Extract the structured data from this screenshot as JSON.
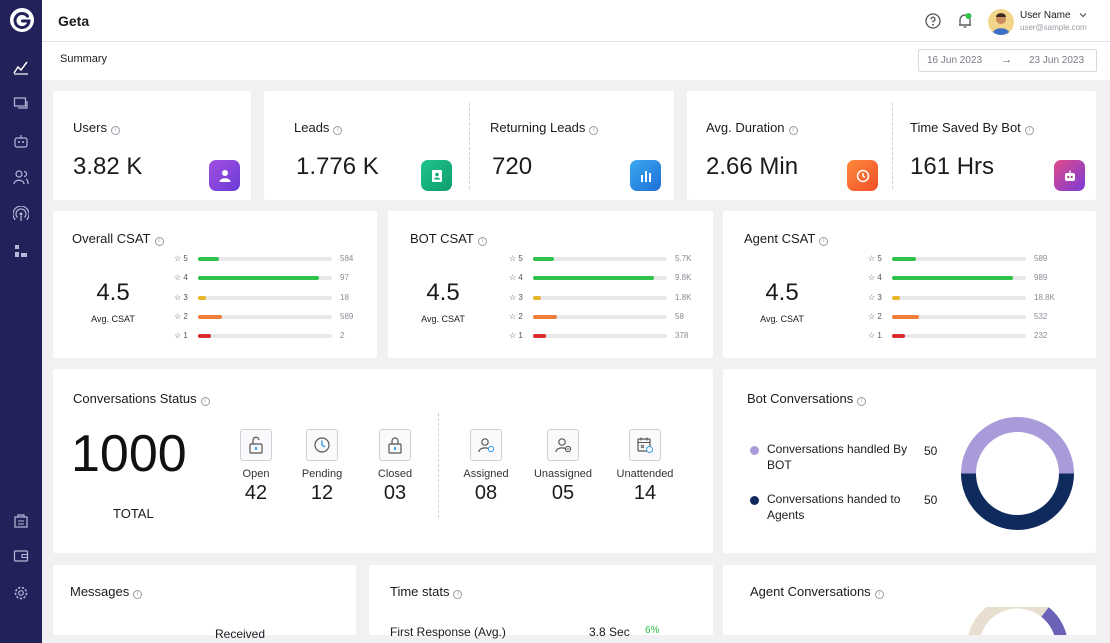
{
  "app": {
    "title": "Geta"
  },
  "user": {
    "name": "User Name",
    "email": "user@sample.com"
  },
  "subheader": {
    "label": "Summary",
    "date_from": "16 Jun 2023",
    "date_to": "23 Jun 2023",
    "arrow": "→"
  },
  "sidebar": {
    "items": [
      "analytics-icon",
      "chat-icon",
      "bot-icon",
      "users-icon",
      "broadcast-icon",
      "integrations-icon",
      "store-icon",
      "wallet-icon",
      "settings-icon"
    ]
  },
  "stats": {
    "users": {
      "label": "Users",
      "value": "3.82 K"
    },
    "leads": {
      "label": "Leads",
      "value": "1.776 K"
    },
    "returning_leads": {
      "label": "Returning Leads",
      "value": "720"
    },
    "avg_duration": {
      "label": "Avg. Duration",
      "value": "2.66 Min"
    },
    "time_saved": {
      "label": "Time Saved By Bot",
      "value": "161 Hrs"
    }
  },
  "csat": [
    {
      "title": "Overall CSAT",
      "score": "4.5",
      "sub": "Avg. CSAT",
      "rows": [
        {
          "star": "☆ 5",
          "count": "584",
          "fill": 0.16,
          "color": "#2dc24a"
        },
        {
          "star": "☆ 4",
          "count": "97",
          "fill": 0.9,
          "color": "#2dc24a"
        },
        {
          "star": "☆ 3",
          "count": "18",
          "fill": 0.06,
          "color": "#e8b62a"
        },
        {
          "star": "☆ 2",
          "count": "589",
          "fill": 0.18,
          "color": "#ee7d3a"
        },
        {
          "star": "☆ 1",
          "count": "2",
          "fill": 0.1,
          "color": "#d92b2b"
        }
      ]
    },
    {
      "title": "BOT CSAT",
      "score": "4.5",
      "sub": "Avg. CSAT",
      "rows": [
        {
          "star": "☆ 5",
          "count": "5.7K",
          "fill": 0.16,
          "color": "#2dc24a"
        },
        {
          "star": "☆ 4",
          "count": "9.8K",
          "fill": 0.9,
          "color": "#2dc24a"
        },
        {
          "star": "☆ 3",
          "count": "1.8K",
          "fill": 0.06,
          "color": "#e8b62a"
        },
        {
          "star": "☆ 2",
          "count": "58",
          "fill": 0.18,
          "color": "#ee7d3a"
        },
        {
          "star": "☆ 1",
          "count": "378",
          "fill": 0.1,
          "color": "#d92b2b"
        }
      ]
    },
    {
      "title": "Agent CSAT",
      "score": "4.5",
      "sub": "Avg. CSAT",
      "rows": [
        {
          "star": "☆ 5",
          "count": "589",
          "fill": 0.18,
          "color": "#2dc24a"
        },
        {
          "star": "☆ 4",
          "count": "989",
          "fill": 0.9,
          "color": "#2dc24a"
        },
        {
          "star": "☆ 3",
          "count": "18.8K",
          "fill": 0.06,
          "color": "#e8b62a"
        },
        {
          "star": "☆ 2",
          "count": "532",
          "fill": 0.2,
          "color": "#ee7d3a"
        },
        {
          "star": "☆ 1",
          "count": "232",
          "fill": 0.1,
          "color": "#d92b2b"
        }
      ]
    }
  ],
  "conversations": {
    "title": "Conversations Status",
    "total": "1000",
    "total_label": "TOTAL",
    "items": [
      {
        "label": "Open",
        "value": "42",
        "icon": "unlock-icon"
      },
      {
        "label": "Pending",
        "value": "12",
        "icon": "clock-icon"
      },
      {
        "label": "Closed",
        "value": "03",
        "icon": "lock-icon"
      },
      {
        "label": "Assigned",
        "value": "08",
        "icon": "user-check-icon"
      },
      {
        "label": "Unassigned",
        "value": "05",
        "icon": "user-minus-icon"
      },
      {
        "label": "Unattended",
        "value": "14",
        "icon": "calendar-clock-icon"
      }
    ]
  },
  "bot_conversations": {
    "title": "Bot Conversations",
    "legend": [
      {
        "label": "Conversations handled By BOT",
        "value": "50",
        "color": "#a99ad9"
      },
      {
        "label": "Conversations handed to Agents",
        "value": "50",
        "color": "#0f2a5c"
      }
    ],
    "split": [
      50,
      50
    ]
  },
  "bottom": {
    "messages_title": "Messages",
    "messages_partial": "Received",
    "time_stats_title": "Time stats",
    "time_row_label": "First Response (Avg.)",
    "time_row_value": "3.8 Sec",
    "time_row_delta": "6%",
    "agent_conv_title": "Agent Conversations"
  }
}
